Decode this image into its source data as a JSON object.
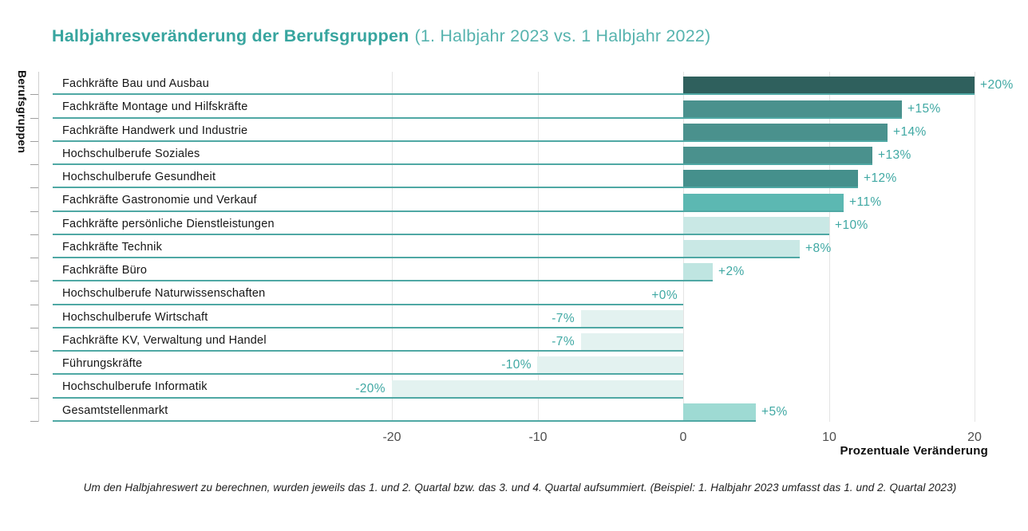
{
  "title": {
    "main": "Halbjahresveränderung der Berufsgruppen",
    "sub": "(1. Halbjahr 2023 vs. 1 Halbjahr 2022)"
  },
  "footer_note": "Um den Halbjahreswert zu berechnen, wurden jeweils das 1. und 2. Quartal bzw. das 3. und 4. Quartal aufsummiert. (Beispiel: 1. Halbjahr 2023 umfasst das 1. und 2. Quartal 2023)",
  "chart_data": {
    "type": "bar",
    "orientation": "horizontal",
    "title": "Halbjahresveränderung der Berufsgruppen (1. Halbjahr 2023 vs. 1 Halbjahr 2022)",
    "xlabel": "Prozentuale Veränderung",
    "ylabel": "Berufsgruppen",
    "x_ticks": [
      -20,
      -10,
      0,
      10,
      20
    ],
    "x_tick_labels": [
      "-20",
      "-10",
      "0",
      "10",
      "20"
    ],
    "xlim": [
      -43,
      21
    ],
    "grid": "vertical",
    "legend": "none",
    "categories": [
      "Fachkräfte Bau und Ausbau",
      "Fachkräfte Montage und Hilfskräfte",
      "Fachkräfte Handwerk und Industrie",
      "Hochschulberufe Soziales",
      "Hochschulberufe Gesundheit",
      "Fachkräfte Gastronomie und Verkauf",
      "Fachkräfte persönliche Dienstleistungen",
      "Fachkräfte Technik",
      "Fachkräfte Büro",
      "Hochschulberufe Naturwissenschaften",
      "Hochschulberufe Wirtschaft",
      "Fachkräfte KV, Verwaltung und Handel",
      "Führungskräfte",
      "Hochschulberufe Informatik",
      "Gesamtstellenmarkt"
    ],
    "values": [
      20,
      15,
      14,
      13,
      12,
      11,
      10,
      8,
      2,
      0,
      -7,
      -7,
      -10,
      -20,
      5
    ],
    "value_labels": [
      "+20%",
      "+15%",
      "+14%",
      "+13%",
      "+12%",
      "+11%",
      "+10%",
      "+8%",
      "+2%",
      "+0%",
      "-7%",
      "-7%",
      "-10%",
      "-20%",
      "+5%"
    ],
    "bar_colors": [
      "#2f605d",
      "#4a918d",
      "#4a918d",
      "#4a918d",
      "#45908c",
      "#5cb8b2",
      "#c9e8e5",
      "#c9e8e5",
      "#bfe5e1",
      null,
      "#e3f2f0",
      "#e3f2f0",
      "#e3f2f0",
      "#e3f2f0",
      "#9edad3"
    ]
  },
  "colors": {
    "title": "#38a59f",
    "subtitle": "#56b3ae",
    "baseline": "#4fa8a4",
    "value_label": "#3fa8a3",
    "row_label": "#161616",
    "grid": "#e4e4e4",
    "axis_line": "#cfcfcf",
    "axis_tick": "#9f9f9f",
    "tick_label": "#4e4e4e",
    "axis_title": "#0e0e0e",
    "footnote": "#1d1d1d"
  }
}
